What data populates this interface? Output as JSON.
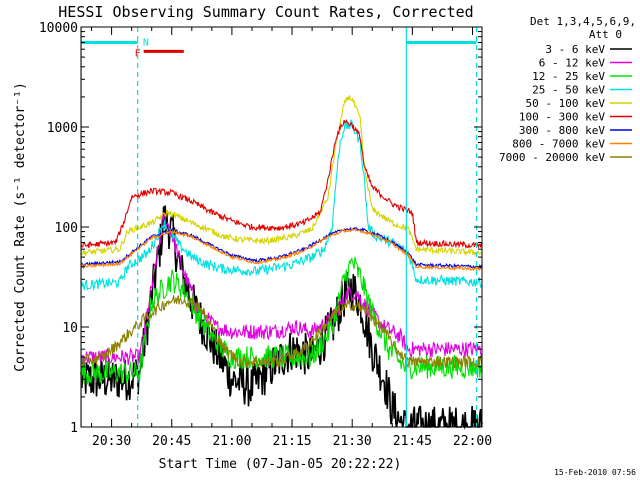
{
  "chart_data": {
    "type": "line",
    "title": "HESSI Observing Summary Count Rates, Corrected",
    "xlabel": "Start Time (07-Jan-05 20:22:22)",
    "ylabel": "Corrected Count Rate (s⁻¹ detector⁻¹)",
    "yscale": "log",
    "ylim": [
      1,
      10000
    ],
    "xlim_minutes": [
      0,
      100
    ],
    "x_start_offset_minutes": 22.37,
    "yticks": [
      {
        "value": 1,
        "label": "1"
      },
      {
        "value": 10,
        "label": "10"
      },
      {
        "value": 100,
        "label": "100"
      },
      {
        "value": 1000,
        "label": "1000"
      },
      {
        "value": 10000,
        "label": "10000"
      }
    ],
    "xticks": [
      {
        "value": 30,
        "label": "20:30"
      },
      {
        "value": 45,
        "label": "20:45"
      },
      {
        "value": 60,
        "label": "21:00"
      },
      {
        "value": 75,
        "label": "21:15"
      },
      {
        "value": 90,
        "label": "21:30"
      },
      {
        "value": 105,
        "label": "21:45"
      },
      {
        "value": 120,
        "label": "22:00"
      }
    ],
    "legend_header": [
      "Det 1,3,4,5,6,9,",
      "Att 0"
    ],
    "legend_placement": "right",
    "series": [
      {
        "name": "3 - 6 keV",
        "color": "#000000",
        "points": [
          [
            22.4,
            3
          ],
          [
            34,
            3
          ],
          [
            37,
            3.5
          ],
          [
            40,
            20
          ],
          [
            42,
            60
          ],
          [
            43,
            120
          ],
          [
            45,
            90
          ],
          [
            47,
            40
          ],
          [
            50,
            18
          ],
          [
            55,
            7
          ],
          [
            60,
            3
          ],
          [
            65,
            2.5
          ],
          [
            70,
            4
          ],
          [
            75,
            6
          ],
          [
            80,
            5
          ],
          [
            85,
            10
          ],
          [
            88,
            20
          ],
          [
            90,
            25
          ],
          [
            92,
            18
          ],
          [
            95,
            6
          ],
          [
            98,
            3
          ],
          [
            100,
            1.5
          ],
          [
            103,
            1
          ],
          [
            122.4,
            1
          ]
        ]
      },
      {
        "name": "6 - 12 keV",
        "color": "#e000e0",
        "points": [
          [
            22.4,
            5
          ],
          [
            37,
            5
          ],
          [
            40,
            25
          ],
          [
            42,
            70
          ],
          [
            43,
            130
          ],
          [
            45,
            85
          ],
          [
            48,
            35
          ],
          [
            52,
            14
          ],
          [
            56,
            10
          ],
          [
            60,
            9
          ],
          [
            70,
            9
          ],
          [
            76,
            10
          ],
          [
            80,
            9
          ],
          [
            85,
            12
          ],
          [
            89,
            22
          ],
          [
            91,
            22
          ],
          [
            94,
            15
          ],
          [
            98,
            10
          ],
          [
            102,
            8
          ],
          [
            104,
            6
          ],
          [
            122.4,
            6
          ]
        ]
      },
      {
        "name": "12 - 25 keV",
        "color": "#00e000",
        "points": [
          [
            22.4,
            3.5
          ],
          [
            37,
            3.5
          ],
          [
            40,
            18
          ],
          [
            45,
            30
          ],
          [
            48,
            24
          ],
          [
            52,
            12
          ],
          [
            56,
            7
          ],
          [
            60,
            5
          ],
          [
            80,
            5
          ],
          [
            85,
            10
          ],
          [
            88,
            30
          ],
          [
            90,
            45
          ],
          [
            92,
            32
          ],
          [
            95,
            14
          ],
          [
            99,
            6
          ],
          [
            103,
            4
          ],
          [
            122.4,
            4
          ]
        ]
      },
      {
        "name": "25 - 50 keV",
        "color": "#00e0e0",
        "points": [
          [
            22.4,
            26
          ],
          [
            32,
            28
          ],
          [
            34,
            40
          ],
          [
            39,
            55
          ],
          [
            41,
            75
          ],
          [
            43,
            110
          ],
          [
            45,
            85
          ],
          [
            47,
            65
          ],
          [
            50,
            50
          ],
          [
            54,
            42
          ],
          [
            58,
            38
          ],
          [
            66,
            36
          ],
          [
            75,
            42
          ],
          [
            80,
            50
          ],
          [
            83,
            60
          ],
          [
            85,
            100
          ],
          [
            86,
            300
          ],
          [
            87,
            700
          ],
          [
            88,
            1000
          ],
          [
            90,
            1050
          ],
          [
            92,
            700
          ],
          [
            93,
            300
          ],
          [
            94,
            100
          ],
          [
            96,
            80
          ],
          [
            100,
            70
          ],
          [
            104,
            55
          ],
          [
            106,
            30
          ],
          [
            122.4,
            28
          ]
        ]
      },
      {
        "name": "50 - 100 keV",
        "color": "#d4d400",
        "points": [
          [
            22.4,
            55
          ],
          [
            32,
            60
          ],
          [
            34,
            90
          ],
          [
            40,
            110
          ],
          [
            44,
            140
          ],
          [
            46,
            130
          ],
          [
            50,
            110
          ],
          [
            54,
            95
          ],
          [
            58,
            80
          ],
          [
            62,
            75
          ],
          [
            68,
            72
          ],
          [
            75,
            80
          ],
          [
            80,
            95
          ],
          [
            84,
            200
          ],
          [
            86,
            700
          ],
          [
            88,
            1700
          ],
          [
            89,
            2000
          ],
          [
            90,
            1900
          ],
          [
            92,
            1200
          ],
          [
            93,
            400
          ],
          [
            95,
            150
          ],
          [
            100,
            110
          ],
          [
            104,
            95
          ],
          [
            106,
            60
          ],
          [
            122.4,
            55
          ]
        ]
      },
      {
        "name": "100 - 300 keV",
        "color": "#e00000",
        "points": [
          [
            22.4,
            65
          ],
          [
            31,
            70
          ],
          [
            33,
            110
          ],
          [
            35,
            200
          ],
          [
            40,
            230
          ],
          [
            45,
            220
          ],
          [
            50,
            180
          ],
          [
            55,
            140
          ],
          [
            60,
            115
          ],
          [
            65,
            100
          ],
          [
            72,
            98
          ],
          [
            78,
            110
          ],
          [
            82,
            140
          ],
          [
            84,
            300
          ],
          [
            86,
            800
          ],
          [
            88,
            1150
          ],
          [
            90,
            1050
          ],
          [
            92,
            800
          ],
          [
            93,
            400
          ],
          [
            95,
            250
          ],
          [
            100,
            170
          ],
          [
            103,
            150
          ],
          [
            105,
            140
          ],
          [
            106,
            70
          ],
          [
            122.4,
            65
          ]
        ]
      },
      {
        "name": "300 - 800 keV",
        "color": "#0000e0",
        "points": [
          [
            22.4,
            42
          ],
          [
            32,
            45
          ],
          [
            36,
            60
          ],
          [
            40,
            80
          ],
          [
            45,
            93
          ],
          [
            50,
            82
          ],
          [
            55,
            65
          ],
          [
            60,
            52
          ],
          [
            66,
            46
          ],
          [
            72,
            50
          ],
          [
            78,
            60
          ],
          [
            84,
            82
          ],
          [
            88,
            95
          ],
          [
            92,
            95
          ],
          [
            96,
            85
          ],
          [
            100,
            70
          ],
          [
            104,
            55
          ],
          [
            106,
            42
          ],
          [
            122.4,
            40
          ]
        ]
      },
      {
        "name": "800 - 7000 keV",
        "color": "#ff8000",
        "points": [
          [
            22.4,
            40
          ],
          [
            32,
            43
          ],
          [
            36,
            58
          ],
          [
            40,
            78
          ],
          [
            45,
            90
          ],
          [
            50,
            80
          ],
          [
            55,
            63
          ],
          [
            60,
            50
          ],
          [
            66,
            44
          ],
          [
            72,
            48
          ],
          [
            78,
            58
          ],
          [
            84,
            80
          ],
          [
            88,
            92
          ],
          [
            92,
            92
          ],
          [
            96,
            82
          ],
          [
            100,
            68
          ],
          [
            104,
            52
          ],
          [
            106,
            40
          ],
          [
            122.4,
            38
          ]
        ]
      },
      {
        "name": "7000 - 20000 keV",
        "color": "#8b8000",
        "points": [
          [
            22.4,
            4.5
          ],
          [
            28,
            5
          ],
          [
            32,
            7
          ],
          [
            36,
            10
          ],
          [
            40,
            14
          ],
          [
            44,
            18
          ],
          [
            48,
            19
          ],
          [
            52,
            16
          ],
          [
            55,
            10
          ],
          [
            58,
            6
          ],
          [
            62,
            4.5
          ],
          [
            72,
            4.5
          ],
          [
            78,
            6
          ],
          [
            82,
            9
          ],
          [
            86,
            14
          ],
          [
            90,
            17
          ],
          [
            94,
            14
          ],
          [
            98,
            9
          ],
          [
            101,
            6
          ],
          [
            104,
            4.5
          ],
          [
            122.4,
            4.5
          ]
        ]
      }
    ],
    "annotations": {
      "left_bar": {
        "start": 22.4,
        "end": 36.5,
        "level": 7000,
        "color": "#00e0e0"
      },
      "right_bar": {
        "start": 103.5,
        "end": 121,
        "level": 7000,
        "color": "#00e0e0"
      },
      "flare_bar": {
        "start": 38,
        "end": 48,
        "level": 5700,
        "color": "#e00000",
        "label": "F"
      },
      "night_label": {
        "at": 37.3,
        "label": "N"
      },
      "vlines_solid": [
        22.4,
        103.5
      ],
      "vlines_dashed": [
        36.5,
        121
      ]
    },
    "footer_timestamp": "15-Feb-2010 07:56"
  }
}
